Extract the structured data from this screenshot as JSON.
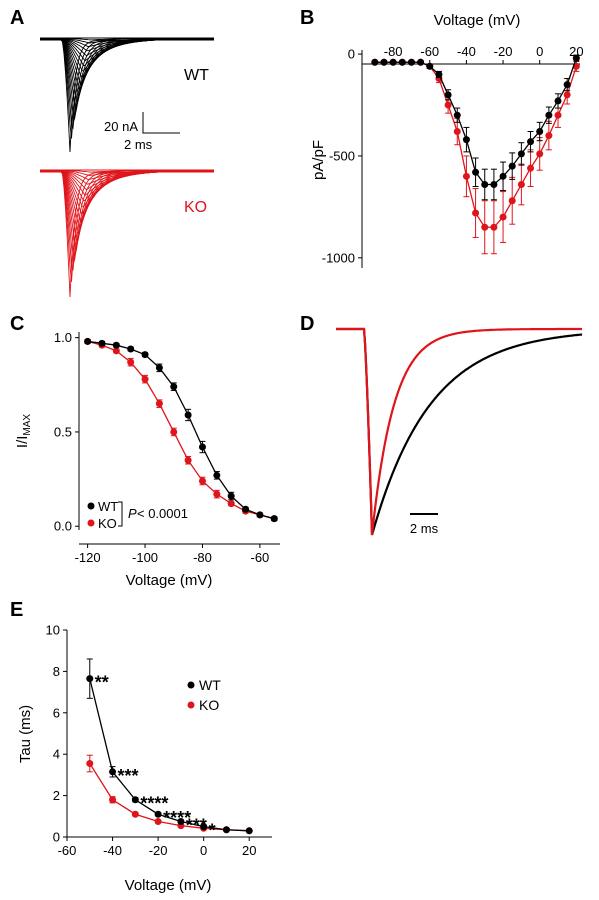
{
  "panel_labels": {
    "A": "A",
    "B": "B",
    "C": "C",
    "D": "D",
    "E": "E"
  },
  "colors": {
    "wt": "#000000",
    "ko": "#e0141b"
  },
  "panel_a": {
    "wt_label": "WT",
    "ko_label": "KO",
    "scale_current": "20 nA",
    "scale_time": "2 ms"
  },
  "panel_d": {
    "scale_time": "2 ms"
  },
  "chart_data": [
    {
      "id": "B",
      "type": "line",
      "title": "",
      "xlabel": "Voltage (mV)",
      "ylabel": "pA/pF",
      "xlim": [
        -97,
        22
      ],
      "ylim": [
        -1050,
        20
      ],
      "xticks": [
        -80,
        -60,
        -40,
        -20,
        0,
        20
      ],
      "yticks": [
        0,
        -500,
        -1000
      ],
      "series": [
        {
          "name": "WT",
          "x": [
            -90,
            -85,
            -80,
            -75,
            -70,
            -65,
            -60,
            -55,
            -50,
            -45,
            -40,
            -35,
            -30,
            -25,
            -20,
            -15,
            -10,
            -5,
            0,
            5,
            10,
            15,
            20
          ],
          "y": [
            -40,
            -40,
            -40,
            -40,
            -40,
            -40,
            -60,
            -100,
            -200,
            -300,
            -420,
            -580,
            -640,
            -640,
            -600,
            -550,
            -490,
            -430,
            -380,
            -300,
            -230,
            -150,
            -20
          ],
          "err": [
            5,
            5,
            5,
            5,
            5,
            5,
            10,
            15,
            25,
            35,
            60,
            70,
            75,
            75,
            70,
            65,
            55,
            50,
            45,
            40,
            35,
            30,
            15
          ]
        },
        {
          "name": "KO",
          "x": [
            -90,
            -85,
            -80,
            -75,
            -70,
            -65,
            -60,
            -55,
            -50,
            -45,
            -40,
            -35,
            -30,
            -25,
            -20,
            -15,
            -10,
            -5,
            0,
            5,
            10,
            15,
            20
          ],
          "y": [
            -40,
            -40,
            -40,
            -40,
            -40,
            -40,
            -60,
            -120,
            -250,
            -380,
            -600,
            -780,
            -850,
            -850,
            -800,
            -720,
            -640,
            -560,
            -490,
            -400,
            -300,
            -200,
            -60
          ],
          "err": [
            5,
            5,
            5,
            5,
            5,
            5,
            10,
            20,
            40,
            65,
            100,
            120,
            130,
            130,
            125,
            115,
            100,
            90,
            80,
            70,
            60,
            45,
            25
          ]
        }
      ]
    },
    {
      "id": "C",
      "type": "line",
      "title": "",
      "xlabel": "Voltage (mV)",
      "ylabel": "I/IMAX",
      "xlim": [
        -123,
        -53
      ],
      "ylim": [
        -0.02,
        1.03
      ],
      "xticks": [
        -120,
        -100,
        -80,
        -60
      ],
      "yticks": [
        0.0,
        0.5,
        1.0
      ],
      "series": [
        {
          "name": "WT",
          "x": [
            -120,
            -115,
            -110,
            -105,
            -100,
            -95,
            -90,
            -85,
            -80,
            -75,
            -70,
            -65,
            -60,
            -55
          ],
          "y": [
            0.98,
            0.97,
            0.96,
            0.94,
            0.91,
            0.84,
            0.74,
            0.59,
            0.42,
            0.27,
            0.16,
            0.09,
            0.06,
            0.04
          ],
          "err": [
            0.01,
            0.01,
            0.01,
            0.01,
            0.01,
            0.02,
            0.02,
            0.03,
            0.03,
            0.02,
            0.02,
            0.01,
            0.01,
            0.01
          ]
        },
        {
          "name": "KO",
          "x": [
            -120,
            -115,
            -110,
            -105,
            -100,
            -95,
            -90,
            -85,
            -80,
            -75,
            -70,
            -65,
            -60,
            -55
          ],
          "y": [
            0.98,
            0.96,
            0.93,
            0.87,
            0.78,
            0.65,
            0.5,
            0.35,
            0.24,
            0.17,
            0.12,
            0.08,
            0.06,
            0.04
          ],
          "err": [
            0.01,
            0.01,
            0.01,
            0.02,
            0.02,
            0.02,
            0.02,
            0.02,
            0.02,
            0.02,
            0.01,
            0.01,
            0.01,
            0.01
          ]
        }
      ],
      "legend": {
        "wt": "WT",
        "ko": "KO",
        "stat_prefix": "P",
        "stat_rest": " < 0.0001"
      }
    },
    {
      "id": "E",
      "type": "line",
      "title": "",
      "xlabel": "Voltage (mV)",
      "ylabel": "Tau (ms)",
      "xlim": [
        -60,
        30
      ],
      "ylim": [
        0,
        10
      ],
      "xticks": [
        -60,
        -40,
        -20,
        0,
        20
      ],
      "yticks": [
        0,
        2,
        4,
        6,
        8,
        10
      ],
      "series": [
        {
          "name": "WT",
          "x": [
            -50,
            -40,
            -30,
            -20,
            -10,
            0,
            10,
            20
          ],
          "y": [
            7.65,
            3.15,
            1.8,
            1.1,
            0.75,
            0.5,
            0.35,
            0.3
          ],
          "err": [
            0.95,
            0.25,
            0.1,
            0.08,
            0.05,
            0.04,
            0.03,
            0.03
          ]
        },
        {
          "name": "KO",
          "x": [
            -50,
            -40,
            -30,
            -20,
            -10,
            0,
            10,
            20
          ],
          "y": [
            3.55,
            1.8,
            1.1,
            0.75,
            0.55,
            0.42,
            0.35,
            0.3
          ],
          "err": [
            0.4,
            0.15,
            0.08,
            0.05,
            0.04,
            0.03,
            0.03,
            0.03
          ]
        }
      ],
      "significance": [
        {
          "x": -50,
          "label": "**"
        },
        {
          "x": -40,
          "label": "***"
        },
        {
          "x": -30,
          "label": "****"
        },
        {
          "x": -20,
          "label": "****"
        },
        {
          "x": -10,
          "label": "***"
        },
        {
          "x": 0,
          "label": "*"
        }
      ],
      "legend": {
        "wt": "WT",
        "ko": "KO"
      }
    }
  ]
}
